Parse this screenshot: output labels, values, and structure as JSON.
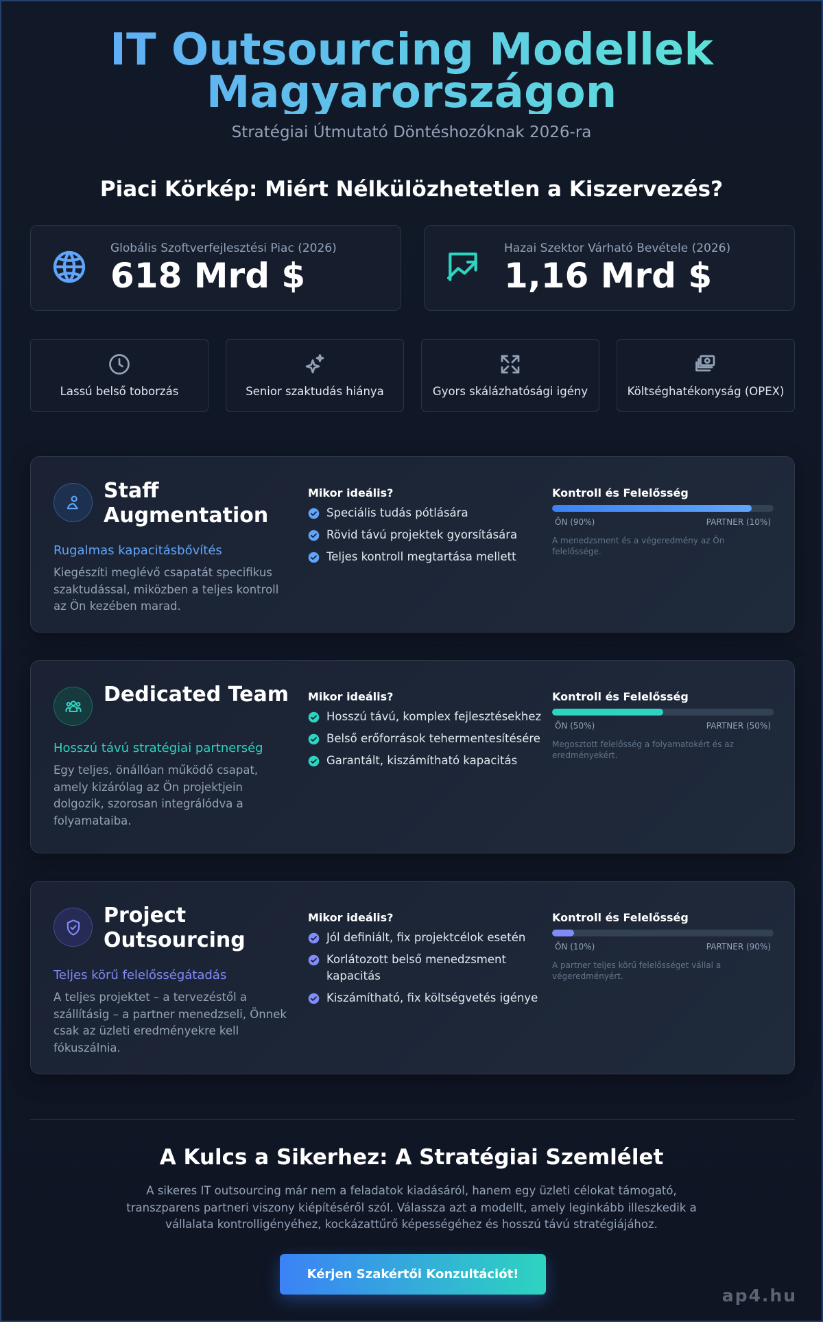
{
  "header": {
    "title": "IT Outsourcing Modellek Magyarországon",
    "subtitle": "Stratégiai Útmutató Döntéshozóknak 2026-ra"
  },
  "market": {
    "heading": "Piaci Körkép: Miért Nélkülözhetetlen a Kiszervezés?",
    "stats": [
      {
        "label": "Globális Szoftverfejlesztési Piac (2026)",
        "value": "618 Mrd $"
      },
      {
        "label": "Hazai Szektor Várható Bevétele (2026)",
        "value": "1,16 Mrd $"
      }
    ],
    "drivers": [
      "Lassú belső toborzás",
      "Senior szaktudás hiánya",
      "Gyors skálázhatósági igény",
      "Költséghatékonyság (OPEX)"
    ]
  },
  "models": [
    {
      "name": "Staff Augmentation",
      "tagline": "Rugalmas kapacitásbővítés",
      "description": "Kiegészíti meglévő csapatát specifikus szaktudással, miközben a teljes kontroll az Ön kezében marad.",
      "ideal_heading": "Mikor ideális?",
      "ideal": [
        "Speciális tudás pótlására",
        "Rövid távú projektek gyorsítására",
        "Teljes kontroll megtartása mellett"
      ],
      "control_heading": "Kontroll és Felelősség",
      "own_share": {
        "value": 90,
        "label": "ÖN (90%)"
      },
      "partner_label": "PARTNER (10%)",
      "control_note": "A menedzsment és a végeredmény az Ön felelőssége."
    },
    {
      "name": "Dedicated Team",
      "tagline": "Hosszú távú stratégiai partnerség",
      "description": "Egy teljes, önállóan működő csapat, amely kizárólag az Ön projektjein dolgozik, szorosan integrálódva a folyamataiba.",
      "ideal_heading": "Mikor ideális?",
      "ideal": [
        "Hosszú távú, komplex fejlesztésekhez",
        "Belső erőforrások tehermentesítésére",
        "Garantált, kiszámítható kapacitás"
      ],
      "control_heading": "Kontroll és Felelősség",
      "own_share": {
        "value": 50,
        "label": "ÖN (50%)"
      },
      "partner_label": "PARTNER (50%)",
      "control_note": "Megosztott felelősség a folyamatokért és az eredményekért."
    },
    {
      "name": "Project Outsourcing",
      "tagline": "Teljes körű felelősségátadás",
      "description": "A teljes projektet – a tervezéstől a szállításig – a partner menedzseli, Önnek csak az üzleti eredményekre kell fókuszálnia.",
      "ideal_heading": "Mikor ideális?",
      "ideal": [
        "Jól definiált, fix projektcélok esetén",
        "Korlátozott belső menedzsment kapacitás",
        "Kiszámítható, fix költségvetés igénye"
      ],
      "control_heading": "Kontroll és Felelősség",
      "own_share": {
        "value": 10,
        "label": "ÖN (10%)"
      },
      "partner_label": "PARTNER (90%)",
      "control_note": "A partner teljes körű felelősséget vállal a végeredményért."
    }
  ],
  "conclusion": {
    "heading": "A Kulcs a Sikerhez: A Stratégiai Szemlélet",
    "text": "A sikeres IT outsourcing már nem a feladatok kiadásáról, hanem egy üzleti célokat támogató, transzparens partneri viszony kiépítéséről szól. Válassza azt a modellt, amely leginkább illeszkedik a vállalata kontrolligényéhez, kockázattűrő képességéhez és hosszú távú stratégiájához.",
    "button": "Kérjen Szakértői Konzultációt!"
  },
  "watermark": "ap4.hu"
}
